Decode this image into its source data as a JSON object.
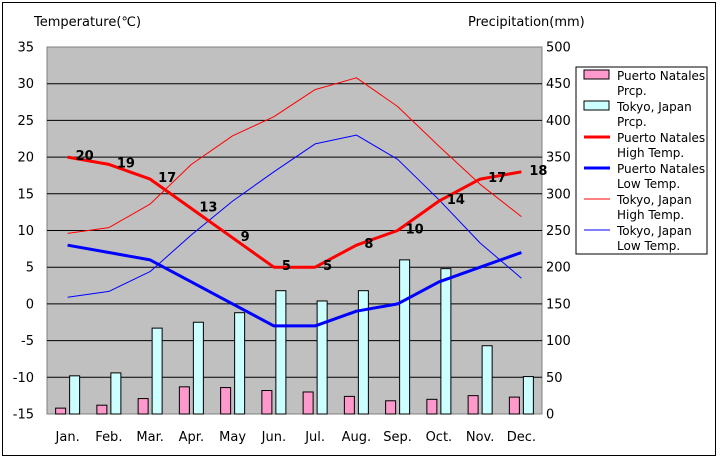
{
  "chart_data": {
    "type": "bar+line",
    "left_axis": {
      "title": "Temperature(℃)",
      "min": -15,
      "max": 35,
      "step": 5
    },
    "right_axis": {
      "title": "Precipitation(mm)",
      "min": 0,
      "max": 500,
      "step": 50
    },
    "categories": [
      "Jan.",
      "Feb.",
      "Mar.",
      "Apr.",
      "May",
      "Jun.",
      "Jul.",
      "Aug.",
      "Sep.",
      "Oct.",
      "Nov.",
      "Dec."
    ],
    "bar_series": [
      {
        "name": "Puerto Natales Prcp.",
        "legend_lines": [
          "Puerto Natales",
          "Prcp."
        ],
        "color": "#ff99cc",
        "axis": "right",
        "values": [
          8,
          12,
          21,
          37,
          36,
          32,
          30,
          24,
          18,
          20,
          25,
          23
        ]
      },
      {
        "name": "Tokyo, Japan Prcp.",
        "legend_lines": [
          "Tokyo, Japan",
          "Prcp."
        ],
        "color": "#ccffff",
        "axis": "right",
        "values": [
          52,
          56,
          117,
          125,
          138,
          168,
          154,
          168,
          210,
          198,
          93,
          51
        ]
      }
    ],
    "line_series": [
      {
        "name": "Puerto Natales High Temp.",
        "legend_lines": [
          "Puerto Natales",
          "High Temp."
        ],
        "color": "#ff0000",
        "width": 3,
        "labeled": true,
        "values": [
          20,
          19,
          17,
          13,
          9,
          5,
          5,
          8,
          10,
          14,
          17,
          18
        ]
      },
      {
        "name": "Puerto Natales Low Temp.",
        "legend_lines": [
          "Puerto Natales",
          "Low Temp."
        ],
        "color": "#0000ff",
        "width": 3,
        "labeled": false,
        "values": [
          8,
          7,
          6,
          3,
          0,
          -3,
          -3,
          -1,
          0,
          3,
          5,
          7
        ]
      },
      {
        "name": "Tokyo, Japan High Temp.",
        "legend_lines": [
          "Tokyo, Japan",
          "High Temp."
        ],
        "color": "#ff0000",
        "width": 1,
        "labeled": false,
        "values": [
          9.6,
          10.4,
          13.6,
          19.0,
          22.9,
          25.5,
          29.2,
          30.8,
          26.9,
          21.5,
          16.3,
          11.9
        ]
      },
      {
        "name": "Tokyo, Japan Low Temp.",
        "legend_lines": [
          "Tokyo, Japan",
          "Low Temp."
        ],
        "color": "#0000ff",
        "width": 1,
        "labeled": false,
        "values": [
          0.9,
          1.7,
          4.4,
          9.4,
          14.0,
          18.0,
          21.8,
          23.0,
          19.7,
          14.2,
          8.3,
          3.5
        ]
      }
    ]
  }
}
